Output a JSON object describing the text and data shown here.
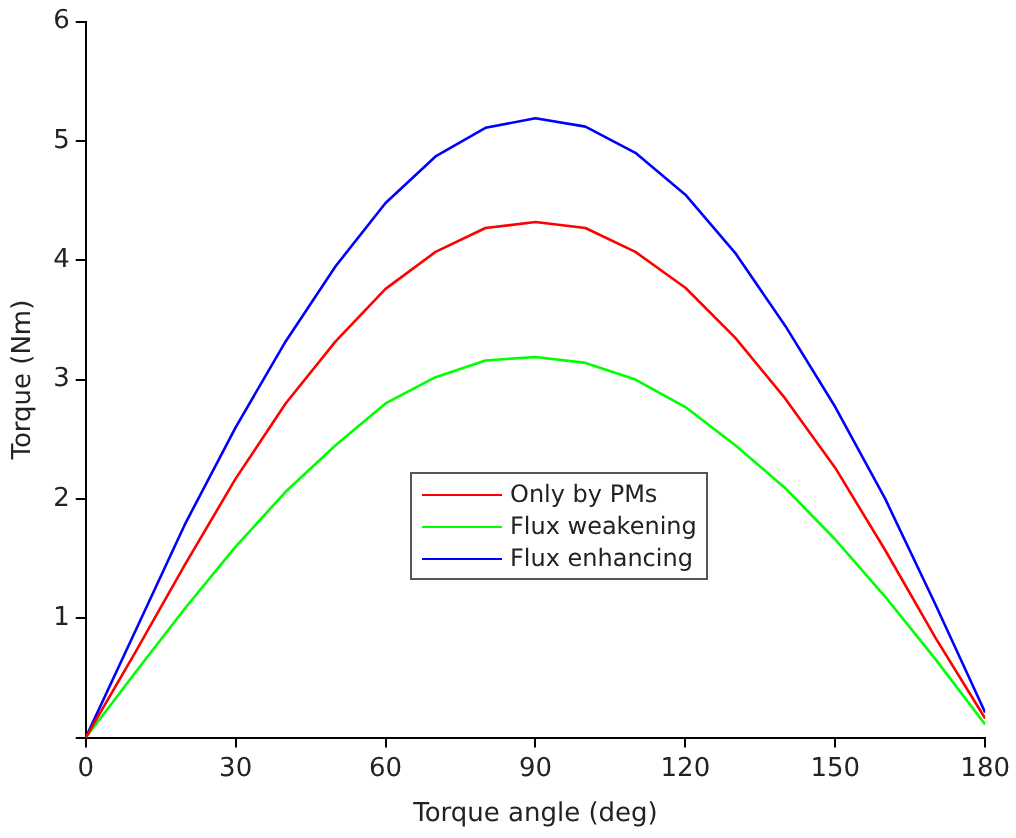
{
  "chart_data": {
    "type": "line",
    "xlabel": "Torque angle (deg)",
    "ylabel": "Torque (Nm)",
    "x": [
      0,
      10,
      20,
      30,
      40,
      50,
      60,
      70,
      80,
      90,
      100,
      110,
      120,
      130,
      140,
      150,
      160,
      170,
      180
    ],
    "series": [
      {
        "name": "Only by PMs",
        "color": "#ff0000",
        "values": [
          0,
          0.72,
          1.46,
          2.17,
          2.8,
          3.32,
          3.76,
          4.07,
          4.27,
          4.32,
          4.27,
          4.07,
          3.77,
          3.35,
          2.84,
          2.26,
          1.57,
          0.84,
          0.16
        ]
      },
      {
        "name": "Flux weakening",
        "color": "#00ff00",
        "values": [
          0,
          0.55,
          1.09,
          1.6,
          2.06,
          2.45,
          2.8,
          3.02,
          3.16,
          3.19,
          3.14,
          3.0,
          2.77,
          2.45,
          2.09,
          1.66,
          1.18,
          0.66,
          0.11
        ]
      },
      {
        "name": "Flux enhancing",
        "color": "#0000ff",
        "values": [
          0,
          0.9,
          1.8,
          2.6,
          3.32,
          3.95,
          4.48,
          4.87,
          5.11,
          5.19,
          5.12,
          4.9,
          4.55,
          4.06,
          3.45,
          2.77,
          2.0,
          1.12,
          0.21
        ]
      }
    ],
    "xlim": [
      0,
      180
    ],
    "xticks": [
      0,
      30,
      60,
      90,
      120,
      150,
      180
    ],
    "ylim": [
      0,
      6
    ],
    "yticks": [
      {
        "value": 0,
        "label": null
      },
      1,
      2,
      3,
      4,
      5,
      6
    ],
    "grid": false,
    "legend": "bottom",
    "marker": "none",
    "line_style": "solid"
  }
}
